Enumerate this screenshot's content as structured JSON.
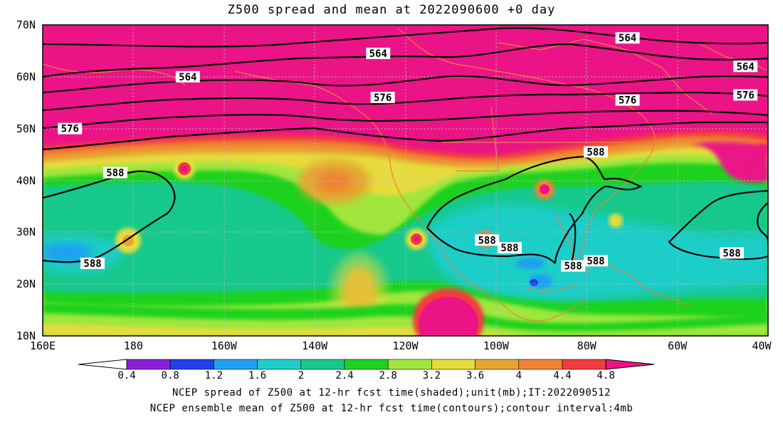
{
  "title": "Z500 spread and mean at 2022090600 +0 day",
  "lat_labels": [
    {
      "label": "70N",
      "lat": 70
    },
    {
      "label": "60N",
      "lat": 60
    },
    {
      "label": "50N",
      "lat": 50
    },
    {
      "label": "40N",
      "lat": 40
    },
    {
      "label": "30N",
      "lat": 30
    },
    {
      "label": "20N",
      "lat": 20
    },
    {
      "label": "10N",
      "lat": 10
    }
  ],
  "lon_labels": [
    {
      "label": "160E",
      "lon": 160
    },
    {
      "label": "180",
      "lon": 180
    },
    {
      "label": "160W",
      "lon": 200
    },
    {
      "label": "140W",
      "lon": 220
    },
    {
      "label": "120W",
      "lon": 240
    },
    {
      "label": "100W",
      "lon": 260
    },
    {
      "label": "80W",
      "lon": 280
    },
    {
      "label": "60W",
      "lon": 300
    },
    {
      "label": "40W",
      "lon": 320
    }
  ],
  "map_extent": {
    "lon_min": 160,
    "lon_max": 320,
    "lat_min": 10,
    "lat_max": 70
  },
  "colorbar": {
    "ticks": [
      "0.4",
      "0.8",
      "1.2",
      "1.6",
      "2",
      "2.4",
      "2.8",
      "3.2",
      "3.6",
      "4",
      "4.4",
      "4.8"
    ],
    "colors": [
      "#ffffff",
      "#8a1ed6",
      "#2240e8",
      "#1ea0f0",
      "#1ecdc8",
      "#18c88c",
      "#1ed21e",
      "#a0e63c",
      "#e6dc3c",
      "#e6a532",
      "#f08232",
      "#f03c3c",
      "#eb1487"
    ]
  },
  "contour_labels": [
    {
      "text": "564",
      "lon": 192,
      "lat": 60
    },
    {
      "text": "564",
      "lon": 234,
      "lat": 64.5
    },
    {
      "text": "564",
      "lon": 289,
      "lat": 67.5
    },
    {
      "text": "564",
      "lon": 315,
      "lat": 62
    },
    {
      "text": "576",
      "lon": 166,
      "lat": 50
    },
    {
      "text": "576",
      "lon": 235,
      "lat": 56
    },
    {
      "text": "576",
      "lon": 289,
      "lat": 55.5
    },
    {
      "text": "576",
      "lon": 315,
      "lat": 56.5
    },
    {
      "text": "588",
      "lon": 176,
      "lat": 41.5
    },
    {
      "text": "588",
      "lon": 171,
      "lat": 24
    },
    {
      "text": "588",
      "lon": 282,
      "lat": 45.5
    },
    {
      "text": "588",
      "lon": 258,
      "lat": 28.5
    },
    {
      "text": "588",
      "lon": 263,
      "lat": 27
    },
    {
      "text": "588",
      "lon": 282,
      "lat": 24.5
    },
    {
      "text": "588",
      "lon": 277,
      "lat": 23.5
    },
    {
      "text": "588",
      "lon": 312,
      "lat": 26
    }
  ],
  "caption_line1": "NCEP spread of Z500 at 12-hr fcst time(shaded);unit(mb);IT:2022090512",
  "caption_line2": "NCEP ensemble mean of Z500 at 12-hr fcst time(contours);contour interval:4mb"
}
